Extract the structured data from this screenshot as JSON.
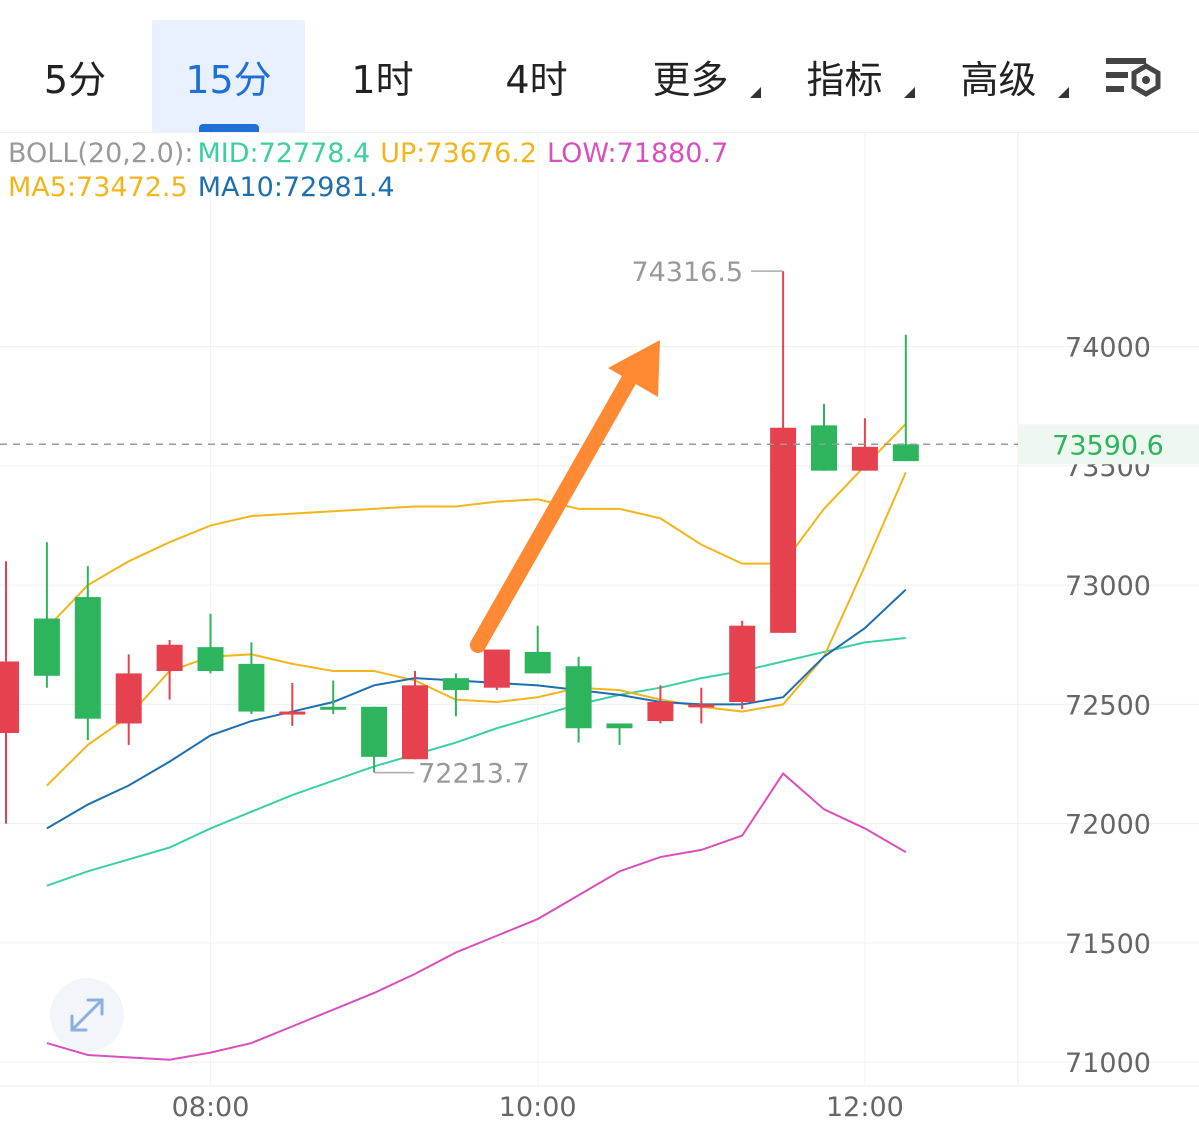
{
  "tabs": [
    {
      "label": "5分",
      "active": false,
      "dropdown": false
    },
    {
      "label": "15分",
      "active": true,
      "dropdown": false
    },
    {
      "label": "1时",
      "active": false,
      "dropdown": false
    },
    {
      "label": "4时",
      "active": false,
      "dropdown": false
    },
    {
      "label": "更多",
      "active": false,
      "dropdown": true
    },
    {
      "label": "指标",
      "active": false,
      "dropdown": true
    },
    {
      "label": "高级",
      "active": false,
      "dropdown": true
    }
  ],
  "settings_icon": "chart-settings-icon",
  "expand_icon": "expand-arrows-icon",
  "legend": {
    "boll_label": "BOLL(20,2.0):",
    "mid": "MID:72778.4",
    "up": "UP:73676.2",
    "low": "LOW:71880.7",
    "ma5": "MA5:73472.5",
    "ma10": "MA10:72981.4"
  },
  "colors": {
    "up_candle": "#2db55d",
    "down_candle": "#e5414f",
    "boll_mid": "#3ccfa3",
    "boll_up": "#f2b61b",
    "boll_low": "#d94fbd",
    "ma5": "#f2b61b",
    "ma10": "#1d6fb0",
    "accent": "#1f6fd6",
    "arrow": "#ff8a33",
    "price_tag": "#2db55d"
  },
  "chart_data": {
    "type": "candlestick",
    "interval": "15分",
    "time_labels": [
      "08:00",
      "10:00",
      "12:00"
    ],
    "ylim": [
      70900,
      74900
    ],
    "y_ticks": [
      71000,
      71500,
      72000,
      72500,
      73000,
      73500,
      74000
    ],
    "current_price": 73590.6,
    "current_price_label": "73590.6",
    "high_label": "74316.5",
    "low_label": "72213.7",
    "candles": [
      {
        "o": 72680,
        "h": 73100,
        "l": 72000,
        "c": 72380
      },
      {
        "o": 72620,
        "h": 73180,
        "l": 72570,
        "c": 72860
      },
      {
        "o": 72440,
        "h": 73080,
        "l": 72350,
        "c": 72950
      },
      {
        "o": 72630,
        "h": 72710,
        "l": 72330,
        "c": 72420
      },
      {
        "o": 72750,
        "h": 72770,
        "l": 72520,
        "c": 72640
      },
      {
        "o": 72640,
        "h": 72880,
        "l": 72630,
        "c": 72740
      },
      {
        "o": 72470,
        "h": 72760,
        "l": 72460,
        "c": 72670
      },
      {
        "o": 72470,
        "h": 72590,
        "l": 72410,
        "c": 72460
      },
      {
        "o": 72490,
        "h": 72600,
        "l": 72460,
        "c": 72490
      },
      {
        "o": 72280,
        "h": 72490,
        "l": 72213.7,
        "c": 72490
      },
      {
        "o": 72580,
        "h": 72640,
        "l": 72270,
        "c": 72270
      },
      {
        "o": 72560,
        "h": 72630,
        "l": 72450,
        "c": 72610
      },
      {
        "o": 72730,
        "h": 72730,
        "l": 72560,
        "c": 72570
      },
      {
        "o": 72630,
        "h": 72830,
        "l": 72670,
        "c": 72720
      },
      {
        "o": 72400,
        "h": 72700,
        "l": 72340,
        "c": 72660
      },
      {
        "o": 72400,
        "h": 72420,
        "l": 72330,
        "c": 72420
      },
      {
        "o": 72510,
        "h": 72580,
        "l": 72420,
        "c": 72430
      },
      {
        "o": 72500,
        "h": 72570,
        "l": 72420,
        "c": 72490
      },
      {
        "o": 72830,
        "h": 72850,
        "l": 72480,
        "c": 72510
      },
      {
        "o": 73660,
        "h": 74316.5,
        "l": 72800,
        "c": 72800
      },
      {
        "o": 73480,
        "h": 73760,
        "l": 73480,
        "c": 73670
      },
      {
        "o": 73580,
        "h": 73700,
        "l": 73480,
        "c": 73480
      },
      {
        "o": 73520,
        "h": 74050,
        "l": 73520,
        "c": 73590.6
      }
    ],
    "series": [
      {
        "name": "MID",
        "values": [
          null,
          71740,
          71800,
          71850,
          71900,
          71980,
          72050,
          72120,
          72180,
          72240,
          72290,
          72340,
          72400,
          72450,
          72500,
          72540,
          72570,
          72610,
          72640,
          72680,
          72720,
          72760,
          72778.4
        ]
      },
      {
        "name": "UP",
        "values": [
          null,
          72820,
          73000,
          73100,
          73180,
          73250,
          73290,
          73300,
          73310,
          73320,
          73330,
          73330,
          73350,
          73360,
          73320,
          73320,
          73280,
          73170,
          73090,
          73090,
          73320,
          73500,
          73676.2
        ]
      },
      {
        "name": "LOW",
        "values": [
          null,
          71080,
          71030,
          71020,
          71010,
          71040,
          71080,
          71150,
          71220,
          71290,
          71370,
          71460,
          71530,
          71600,
          71700,
          71800,
          71860,
          71890,
          71950,
          72210,
          72060,
          71980,
          71880.7
        ]
      },
      {
        "name": "MA5",
        "values": [
          null,
          72160,
          72330,
          72450,
          72640,
          72700,
          72710,
          72670,
          72640,
          72640,
          72600,
          72520,
          72510,
          72530,
          72570,
          72560,
          72520,
          72490,
          72470,
          72500,
          72700,
          73080,
          73472.5
        ]
      },
      {
        "name": "MA10",
        "values": [
          null,
          71980,
          72080,
          72160,
          72260,
          72370,
          72430,
          72470,
          72510,
          72580,
          72610,
          72600,
          72590,
          72580,
          72560,
          72540,
          72510,
          72500,
          72500,
          72530,
          72700,
          72820,
          72981.4
        ]
      }
    ]
  }
}
